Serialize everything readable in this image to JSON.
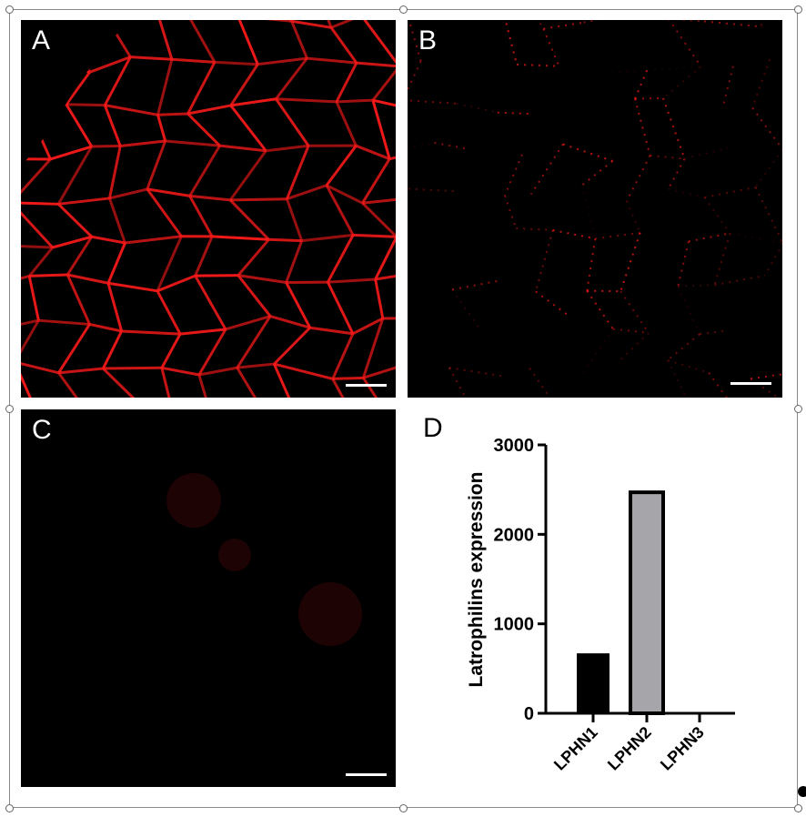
{
  "panels": [
    {
      "label": "A"
    },
    {
      "label": "B"
    },
    {
      "label": "C"
    },
    {
      "label": "D"
    }
  ],
  "colors": {
    "stain": "#ff1a1a",
    "bar_lphn1": "#000000",
    "bar_lphn2": "#a6a6aa"
  },
  "chart_data": {
    "type": "bar",
    "categories": [
      "LPHN1",
      "LPHN2",
      "LPHN3"
    ],
    "values": [
      670,
      2470,
      0
    ],
    "xlabel": "",
    "ylabel": "Latrophilins expression",
    "ylim": [
      0,
      3000
    ],
    "yticks": [
      "0",
      "1000",
      "2000",
      "3000"
    ],
    "grid": false
  }
}
